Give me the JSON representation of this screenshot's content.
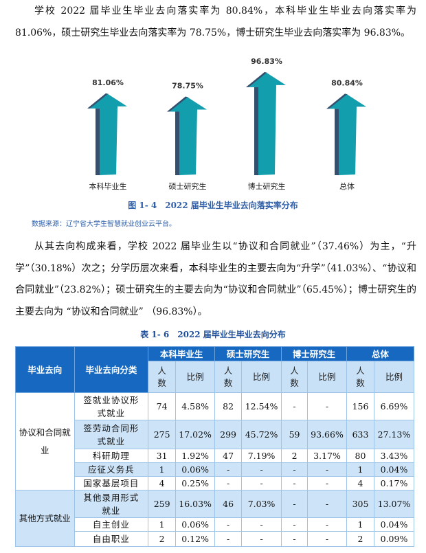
{
  "intro_paragraph": "学校 2022 届毕业生毕业去向落实率为 80.84%，本科毕业生毕业去向落实率为81.06%，硕士研究生毕业去向落实率为 78.75%，博士研究生毕业去向落实率为 96.83%。",
  "figure": {
    "caption": "图 1- 4　2022 届毕业生毕业去向落实率分布",
    "source": "数据来源：辽宁省大学生智慧就业创业云平台。"
  },
  "chart_data": {
    "type": "bar",
    "style": "3d-arrow",
    "categories": [
      "本科毕业生",
      "硕士研究生",
      "博士研究生",
      "总体"
    ],
    "values": [
      81.06,
      78.75,
      96.83,
      80.84
    ],
    "data_labels": [
      "81.06%",
      "78.75%",
      "96.83%",
      "80.84%"
    ],
    "colors": {
      "face": "#139eae",
      "side": "#34506e"
    },
    "grid": false
  },
  "analysis_paragraph": "从其去向构成来看，学校 2022 届毕业生以“协议和合同就业”（37.46%）为主，“升学”（30.18%）次之；分学历层次来看，本科毕业生的主要去向为“升学”（41.03%）、“协议和合同就业”（23.82%）；硕士研究生的主要去向为“协议和合同就业”（65.45%）；博士研究生的主要去向为 “协议和合同就业” （96.83%）。",
  "table": {
    "caption": "表 1- 6　2022 届毕业生毕业去向分布",
    "header": {
      "destination": "毕业去向",
      "category": "毕业去向分类",
      "groups": [
        "本科毕业生",
        "硕士研究生",
        "博士研究生",
        "总体"
      ],
      "count": "人数",
      "ratio": "比例"
    },
    "groups": [
      {
        "name": "协议和合同就业",
        "rows": [
          {
            "category": "签就业协议形式就业",
            "cells": [
              "74",
              "4.58%",
              "82",
              "12.54%",
              "-",
              "-",
              "156",
              "6.69%"
            ]
          },
          {
            "category": "签劳动合同形式就业",
            "cells": [
              "275",
              "17.02%",
              "299",
              "45.72%",
              "59",
              "93.66%",
              "633",
              "27.13%"
            ]
          },
          {
            "category": "科研助理",
            "cells": [
              "31",
              "1.92%",
              "47",
              "7.19%",
              "2",
              "3.17%",
              "80",
              "3.43%"
            ]
          },
          {
            "category": "应征义务兵",
            "cells": [
              "1",
              "0.06%",
              "-",
              "-",
              "-",
              "-",
              "1",
              "0.04%"
            ]
          },
          {
            "category": "国家基层项目",
            "cells": [
              "4",
              "0.25%",
              "-",
              "-",
              "-",
              "-",
              "4",
              "0.17%"
            ]
          }
        ]
      },
      {
        "name": "其他方式就业",
        "rows": [
          {
            "category": "其他录用形式就业",
            "cells": [
              "259",
              "16.03%",
              "46",
              "7.03%",
              "-",
              "-",
              "305",
              "13.07%"
            ]
          },
          {
            "category": "自主创业",
            "cells": [
              "1",
              "0.06%",
              "-",
              "-",
              "-",
              "-",
              "1",
              "0.04%"
            ]
          },
          {
            "category": "自由职业",
            "cells": [
              "2",
              "0.12%",
              "-",
              "-",
              "-",
              "-",
              "2",
              "0.09%"
            ]
          }
        ]
      }
    ]
  }
}
